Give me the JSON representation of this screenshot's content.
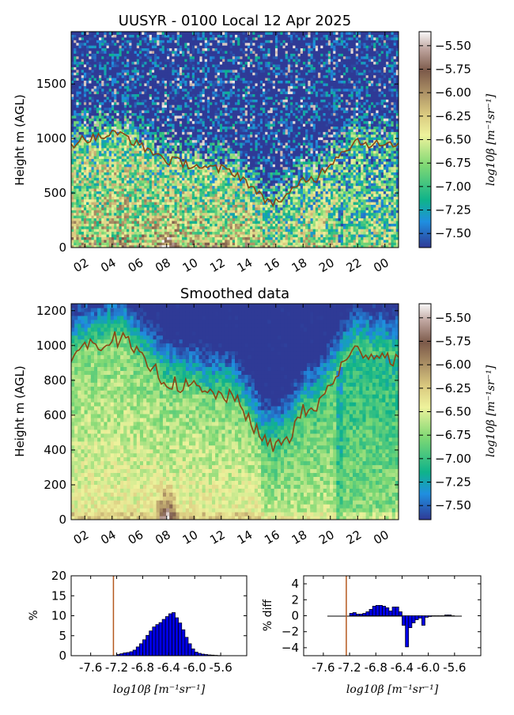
{
  "chart_data": [
    {
      "type": "heatmap",
      "title": "UUSYR - 0100 Local 12 Apr 2025",
      "xlabel": "",
      "ylabel": "Height m (AGL)",
      "x_ticks": [
        "02",
        "04",
        "06",
        "08",
        "10",
        "12",
        "14",
        "16",
        "18",
        "20",
        "22",
        "00"
      ],
      "y_ticks": [
        0,
        500,
        1000,
        1500
      ],
      "ylim": [
        0,
        1980
      ],
      "hours": [
        1,
        25
      ],
      "colorbar": {
        "label": "log10β [m⁻¹sr⁻¹]",
        "ticks": [
          "-5.50",
          "-5.75",
          "-6.00",
          "-6.25",
          "-6.50",
          "-6.75",
          "-7.00",
          "-7.25",
          "-7.50"
        ],
        "range": [
          -7.65,
          -5.35
        ]
      },
      "layer_height": {
        "name": "",
        "hours": [
          1,
          2,
          3,
          4,
          5,
          6,
          7,
          8,
          9,
          10,
          11,
          12,
          13,
          14,
          15,
          16,
          17,
          18,
          19,
          20,
          21,
          22,
          23,
          24,
          25
        ],
        "values": [
          950,
          1000,
          1010,
          1040,
          1030,
          930,
          880,
          800,
          780,
          760,
          720,
          720,
          690,
          590,
          450,
          420,
          480,
          620,
          640,
          780,
          900,
          980,
          950,
          940,
          920
        ]
      }
    },
    {
      "type": "heatmap",
      "title": "Smoothed data",
      "xlabel": "",
      "ylabel": "Height m (AGL)",
      "x_ticks": [
        "02",
        "04",
        "06",
        "08",
        "10",
        "12",
        "14",
        "16",
        "18",
        "20",
        "22",
        "00"
      ],
      "y_ticks": [
        0,
        200,
        400,
        600,
        800,
        1000,
        1200
      ],
      "ylim": [
        0,
        1240
      ],
      "hours": [
        1,
        25
      ],
      "colorbar": {
        "label": "log10β [m⁻¹sr⁻¹]",
        "ticks": [
          "-5.50",
          "-5.75",
          "-6.00",
          "-6.25",
          "-6.50",
          "-6.75",
          "-7.00",
          "-7.25",
          "-7.50"
        ],
        "range": [
          -7.65,
          -5.35
        ]
      },
      "layer_height": {
        "name": "",
        "hours": [
          1,
          2,
          3,
          4,
          5,
          6,
          7,
          8,
          9,
          10,
          11,
          12,
          13,
          14,
          15,
          16,
          17,
          18,
          19,
          20,
          21,
          22,
          23,
          24,
          25
        ],
        "values": [
          950,
          1000,
          1010,
          1040,
          1030,
          930,
          870,
          790,
          770,
          760,
          720,
          720,
          690,
          590,
          450,
          420,
          480,
          620,
          640,
          780,
          900,
          980,
          950,
          940,
          920
        ]
      }
    },
    {
      "type": "bar",
      "title": "",
      "xlabel": "log10β [m⁻¹sr⁻¹]",
      "ylabel": "%",
      "x_ticks": [
        "-7.6",
        "-7.2",
        "-6.8",
        "-6.4",
        "-6.0",
        "-5.6"
      ],
      "y_ticks": [
        0,
        5,
        10,
        15,
        20
      ],
      "xlim": [
        -7.9,
        -5.2
      ],
      "ylim": [
        0,
        20
      ],
      "bin_width": 0.05,
      "bin_start": -7.2,
      "values": [
        0.3,
        0.5,
        0.7,
        0.8,
        1.0,
        1.4,
        2.2,
        3.0,
        4.0,
        5.1,
        6.2,
        7.2,
        7.8,
        8.3,
        9.1,
        9.8,
        10.5,
        10.8,
        9.5,
        8.2,
        6.5,
        4.6,
        3.0,
        1.7,
        0.9,
        0.6,
        0.4,
        0.3,
        0.2,
        0.15,
        0.1,
        0.05
      ],
      "vline": -7.25
    },
    {
      "type": "bar",
      "title": "",
      "xlabel": "log10β [m⁻¹sr⁻¹]",
      "ylabel": "% diff",
      "x_ticks": [
        "-7.6",
        "-7.2",
        "-6.8",
        "-6.4",
        "-6.0",
        "-5.6"
      ],
      "y_ticks": [
        4,
        2,
        0,
        -2,
        -4
      ],
      "xlim": [
        -7.9,
        -5.2
      ],
      "ylim": [
        -5,
        5
      ],
      "bin_width": 0.05,
      "bin_start": -7.2,
      "values": [
        0.3,
        0.4,
        0.2,
        0.2,
        0.3,
        0.5,
        0.8,
        1.2,
        1.3,
        1.3,
        1.2,
        1.0,
        0.6,
        1.1,
        1.1,
        0.5,
        -1.2,
        -3.9,
        -1.5,
        -0.9,
        -0.5,
        -0.3,
        -1.2,
        -0.2,
        -0.1,
        0.0,
        0.0,
        0.0,
        0.0,
        0.1,
        0.1,
        0.0
      ],
      "vline": -7.25
    }
  ]
}
